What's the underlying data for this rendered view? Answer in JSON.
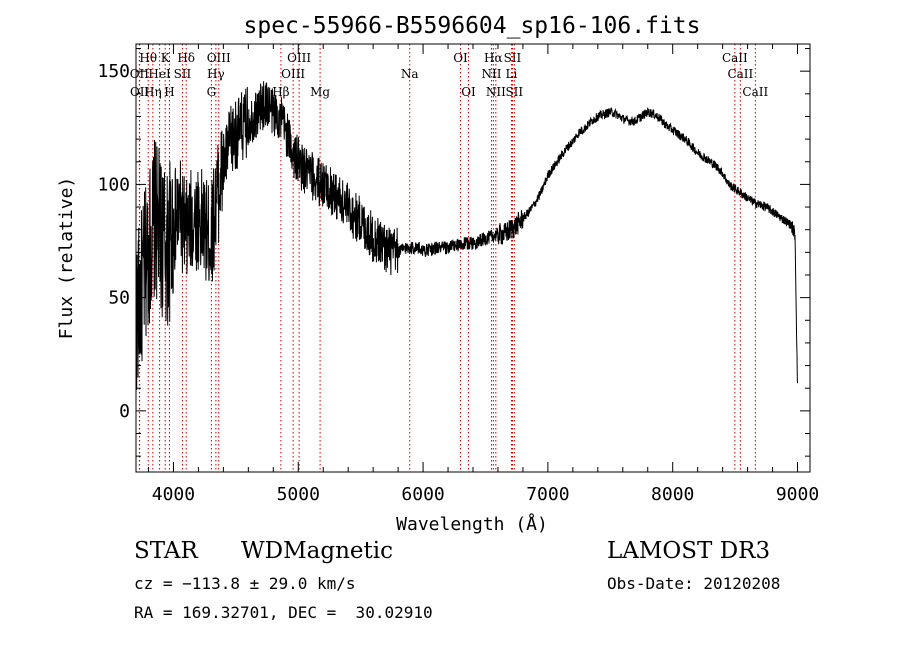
{
  "chart_data": {
    "type": "line",
    "title": "spec-55966-B5596604_sp16-106.fits",
    "xlabel": "Wavelength (Å)",
    "ylabel": "Flux (relative)",
    "xlim": [
      3700,
      9100
    ],
    "ylim": [
      -27,
      162
    ],
    "xticks": [
      4000,
      5000,
      6000,
      7000,
      8000,
      9000
    ],
    "yticks": [
      0,
      50,
      100,
      150
    ],
    "xtick_labels": [
      "4000",
      "5000",
      "6000",
      "7000",
      "8000",
      "9000"
    ],
    "ytick_labels": [
      "0",
      "50",
      "100",
      "150"
    ],
    "series": [
      {
        "name": "flux",
        "x": [
          3700,
          3750,
          3800,
          3850,
          3900,
          3950,
          4000,
          4050,
          4100,
          4150,
          4200,
          4250,
          4300,
          4350,
          4400,
          4450,
          4500,
          4550,
          4600,
          4650,
          4700,
          4750,
          4800,
          4850,
          4900,
          4950,
          5000,
          5050,
          5100,
          5150,
          5200,
          5250,
          5300,
          5350,
          5400,
          5450,
          5500,
          5550,
          5600,
          5650,
          5700,
          5750,
          5800,
          5850,
          5900,
          5950,
          6000,
          6050,
          6100,
          6150,
          6200,
          6250,
          6300,
          6350,
          6400,
          6450,
          6500,
          6550,
          6600,
          6650,
          6700,
          6750,
          6800,
          6850,
          6900,
          6950,
          7000,
          7050,
          7100,
          7150,
          7200,
          7250,
          7300,
          7350,
          7400,
          7450,
          7500,
          7550,
          7600,
          7650,
          7700,
          7750,
          7800,
          7850,
          7900,
          7950,
          8000,
          8050,
          8100,
          8150,
          8200,
          8250,
          8300,
          8350,
          8400,
          8450,
          8500,
          8550,
          8600,
          8650,
          8700,
          8750,
          8800,
          8850,
          8900,
          8950,
          8980,
          9000
        ],
        "y": [
          40,
          55,
          72,
          85,
          78,
          70,
          82,
          88,
          78,
          84,
          86,
          80,
          76,
          95,
          108,
          118,
          122,
          125,
          128,
          130,
          134,
          136,
          132,
          130,
          124,
          115,
          110,
          106,
          104,
          102,
          100,
          98,
          95,
          92,
          90,
          86,
          84,
          80,
          76,
          75,
          72,
          70,
          70,
          72,
          72,
          72,
          71,
          71,
          72,
          72,
          72,
          73,
          73,
          74,
          74,
          75,
          76,
          77,
          78,
          78,
          80,
          82,
          85,
          88,
          92,
          97,
          104,
          108,
          112,
          116,
          119,
          123,
          125,
          128,
          130,
          131,
          132,
          131,
          129,
          128,
          128,
          130,
          132,
          131,
          129,
          126,
          124,
          122,
          120,
          117,
          114,
          112,
          110,
          108,
          105,
          100,
          98,
          96,
          94,
          92,
          91,
          90,
          88,
          86,
          84,
          82,
          78,
          10
        ]
      }
    ],
    "lines": [
      {
        "name": "Hθ",
        "x": 3798,
        "row": 1
      },
      {
        "name": "K",
        "x": 3934,
        "row": 1
      },
      {
        "name": "Hδ",
        "x": 4102,
        "row": 1
      },
      {
        "name": "OIII",
        "x": 4363,
        "row": 1
      },
      {
        "name": "OIII",
        "x": 5007,
        "row": 1
      },
      {
        "name": "OI",
        "x": 6300,
        "row": 1
      },
      {
        "name": "Hα",
        "x": 6563,
        "row": 1
      },
      {
        "name": "SII",
        "x": 6716,
        "row": 1
      },
      {
        "name": "CaII",
        "x": 8498,
        "row": 1
      },
      {
        "name": "OII",
        "x": 3727,
        "row": 2
      },
      {
        "name": "HeI",
        "x": 3889,
        "row": 2
      },
      {
        "name": "SII",
        "x": 4072,
        "row": 2
      },
      {
        "name": "Hγ",
        "x": 4340,
        "row": 2
      },
      {
        "name": "OIII",
        "x": 4959,
        "row": 2
      },
      {
        "name": "Na",
        "x": 5893,
        "row": 2
      },
      {
        "name": "NII",
        "x": 6548,
        "row": 2
      },
      {
        "name": "Li",
        "x": 6708,
        "row": 2
      },
      {
        "name": "CaII",
        "x": 8542,
        "row": 2
      },
      {
        "name": "OII",
        "x": 3729,
        "row": 3
      },
      {
        "name": "Hη",
        "x": 3835,
        "row": 3
      },
      {
        "name": "H",
        "x": 3968,
        "row": 3
      },
      {
        "name": "G",
        "x": 4304,
        "row": 3
      },
      {
        "name": "Hβ",
        "x": 4861,
        "row": 3
      },
      {
        "name": "Mg",
        "x": 5175,
        "row": 3
      },
      {
        "name": "OI",
        "x": 6364,
        "row": 3
      },
      {
        "name": "NII",
        "x": 6583,
        "row": 3
      },
      {
        "name": "SII",
        "x": 6731,
        "row": 3
      },
      {
        "name": "CaII",
        "x": 8662,
        "row": 3
      }
    ],
    "colors": {
      "line": "#000000",
      "marker": "#cc0000",
      "axis": "#000000"
    }
  },
  "info": {
    "object_class": "STAR",
    "subclass": "WDMagnetic",
    "survey": "LAMOST DR3",
    "redshift_line": "cz = −113.8 ± 29.0 km/s",
    "obs_date": "Obs-Date: 20120208",
    "coords": "RA = 169.32701, DEC =  30.02910"
  }
}
